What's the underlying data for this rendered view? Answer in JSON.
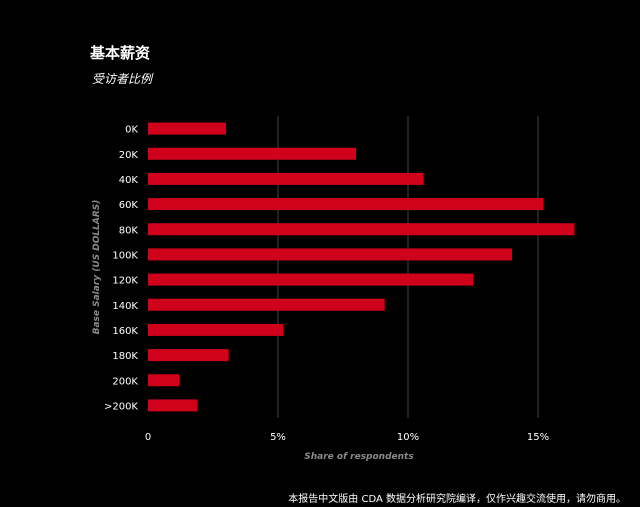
{
  "header": {
    "title": "基本薪资",
    "subtitle": "受访者比例"
  },
  "footer": {
    "note": "本报告中文版由 CDA 数据分析研究院编译，仅作兴趣交流使用，请勿商用。"
  },
  "chart_data": {
    "type": "bar",
    "orientation": "horizontal",
    "categories": [
      "0K",
      "20K",
      "40K",
      "60K",
      "80K",
      "100K",
      "120K",
      "140K",
      "160K",
      "180K",
      "200K",
      ">200K"
    ],
    "values": [
      3.0,
      8.0,
      10.6,
      15.2,
      16.4,
      14.0,
      12.5,
      9.1,
      5.2,
      3.1,
      1.2,
      1.9
    ],
    "xlabel": "Share of respondents",
    "ylabel": "Base Salary (US DOLLARS)",
    "xlim": [
      0,
      17
    ],
    "xticks": [
      {
        "value": 0,
        "label": "0"
      },
      {
        "value": 5,
        "label": "5%"
      },
      {
        "value": 10,
        "label": "10%"
      },
      {
        "value": 15,
        "label": "15%"
      }
    ],
    "grid": true,
    "bar_color": "#d0021b",
    "grid_color": "#444444"
  }
}
